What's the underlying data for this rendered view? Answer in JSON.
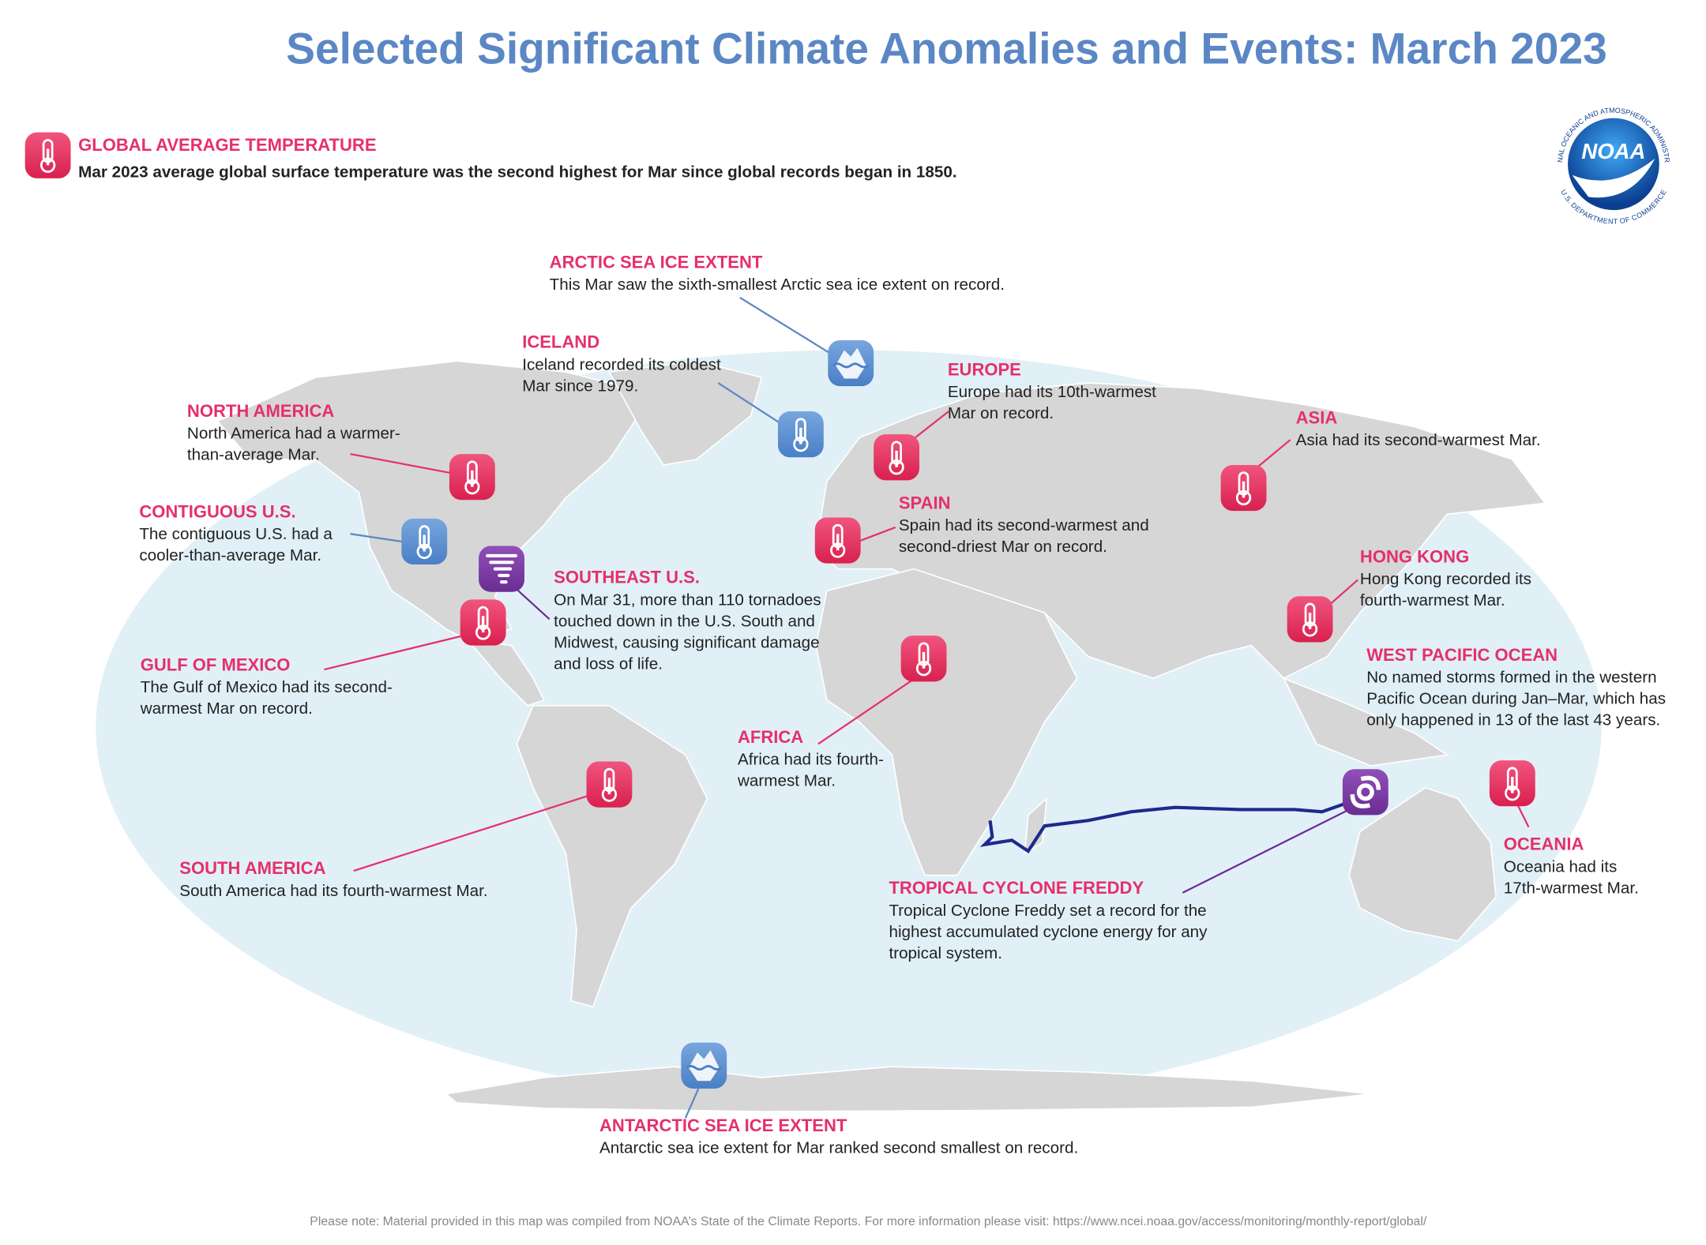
{
  "title": "Selected Significant Climate Anomalies and Events: March 2023",
  "logo": {
    "name": "NOAA",
    "ring_top": "NATIONAL OCEANIC AND ATMOSPHERIC ADMINISTRATION",
    "ring_bottom": "U.S. DEPARTMENT OF COMMERCE"
  },
  "global": {
    "heading": "GLOBAL AVERAGE TEMPERATURE",
    "text": "Mar 2023 average global surface temperature was the second highest for Mar since global records began in 1850."
  },
  "events": [
    {
      "heading": "ARCTIC SEA ICE EXTENT",
      "lines": [
        "This Mar saw the sixth-smallest Arctic sea ice extent on record."
      ]
    },
    {
      "heading": "ICELAND",
      "lines": [
        "Iceland recorded its coldest",
        "Mar since 1979."
      ]
    },
    {
      "heading": "EUROPE",
      "lines": [
        "Europe had its 10th-warmest",
        "Mar on record."
      ]
    },
    {
      "heading": "NORTH AMERICA",
      "lines": [
        "North America had a warmer-",
        "than-average Mar."
      ]
    },
    {
      "heading": "ASIA",
      "lines": [
        "Asia had its second-warmest Mar."
      ]
    },
    {
      "heading": "CONTIGUOUS U.S.",
      "lines": [
        "The contiguous U.S. had a",
        "cooler-than-average Mar."
      ]
    },
    {
      "heading": "SPAIN",
      "lines": [
        "Spain had its second-warmest and",
        "second-driest Mar on record."
      ]
    },
    {
      "heading": "SOUTHEAST U.S.",
      "lines": [
        "On Mar 31, more than 110 tornadoes",
        "touched down in the U.S. South and",
        "Midwest, causing significant damage",
        "and loss of life."
      ]
    },
    {
      "heading": "HONG KONG",
      "lines": [
        "Hong Kong recorded its",
        "fourth-warmest Mar."
      ]
    },
    {
      "heading": "GULF OF MEXICO",
      "lines": [
        "The Gulf of Mexico had its second-",
        "warmest Mar on record."
      ]
    },
    {
      "heading": "WEST PACIFIC OCEAN",
      "lines": [
        "No named storms formed in the western",
        "Pacific Ocean during Jan–Mar, which has",
        "only happened in 13 of the last 43 years."
      ]
    },
    {
      "heading": "AFRICA",
      "lines": [
        "Africa had its fourth-",
        "warmest Mar."
      ]
    },
    {
      "heading": "SOUTH AMERICA",
      "lines": [
        "South America had its fourth-warmest Mar."
      ]
    },
    {
      "heading": "OCEANIA",
      "lines": [
        "Oceania had its",
        "17th-warmest Mar."
      ]
    },
    {
      "heading": "TROPICAL CYCLONE FREDDY",
      "lines": [
        "Tropical Cyclone Freddy set a record for the",
        "highest accumulated cyclone energy for any",
        "tropical system."
      ]
    },
    {
      "heading": "ANTARCTIC SEA ICE EXTENT",
      "lines": [
        "Antarctic sea ice extent for Mar ranked second smallest on record."
      ]
    }
  ],
  "note": "Please note: Material provided in this map was compiled from NOAA’s State of the Climate Reports. For more information please visit: https://www.ncei.noaa.gov/access/monitoring/monthly-report/global/"
}
